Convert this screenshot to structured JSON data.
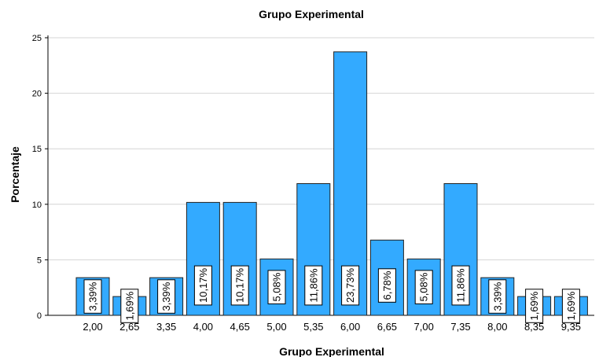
{
  "chart_data": {
    "type": "bar",
    "title": "Grupo Experimental",
    "xlabel": "Grupo Experimental",
    "ylabel": "Porcentaje",
    "ylim": [
      0,
      25
    ],
    "yticks": [
      0,
      5,
      10,
      15,
      20,
      25
    ],
    "grid": true,
    "bar_color": "#33aaff",
    "categories": [
      "2,00",
      "2,65",
      "3,35",
      "4,00",
      "4,65",
      "5,00",
      "5,35",
      "6,00",
      "6,65",
      "7,00",
      "7,35",
      "8,00",
      "8,35",
      "9,35"
    ],
    "values": [
      3.39,
      1.69,
      3.39,
      10.17,
      10.17,
      5.08,
      11.86,
      23.73,
      6.78,
      5.08,
      11.86,
      3.39,
      1.69,
      1.69
    ],
    "data_labels": [
      "3,39%",
      "1,69%",
      "3,39%",
      "10,17%",
      "10,17%",
      "5,08%",
      "11,86%",
      "23,73%",
      "6,78%",
      "5,08%",
      "11,86%",
      "3,39%",
      "1,69%",
      "1,69%"
    ]
  }
}
